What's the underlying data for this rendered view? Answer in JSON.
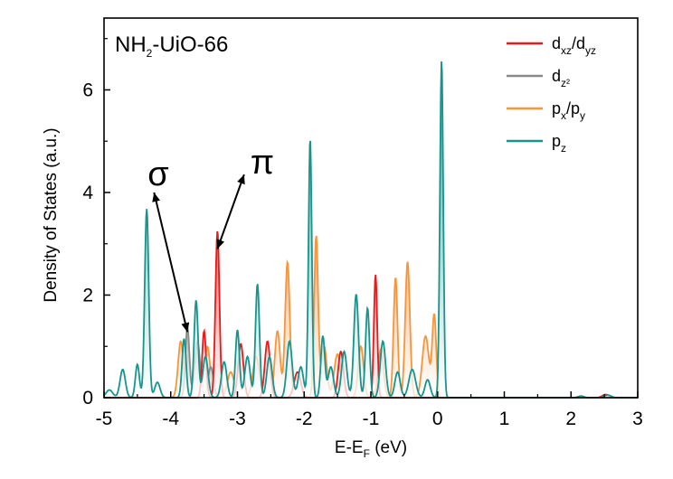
{
  "chart_data": {
    "type": "area",
    "xlabel_main": "E-E",
    "xlabel_sub": "F",
    "xlabel_unit": " (eV)",
    "ylabel": "Density of States (a.u.)",
    "xlim": [
      -5,
      3
    ],
    "ylim": [
      0,
      7.4
    ],
    "x_ticks": [
      -5,
      -4,
      -3,
      -2,
      -1,
      0,
      1,
      2,
      3
    ],
    "x_tick_labels": [
      "-5",
      "-4",
      "-3",
      "-2",
      "-1",
      "0",
      "1",
      "2",
      "3"
    ],
    "y_ticks": [
      0,
      2,
      4,
      6
    ],
    "y_tick_labels": [
      "0",
      "2",
      "4",
      "6"
    ],
    "annotation_label_main": "NH",
    "annotation_label_sub": "2",
    "annotation_label_rest": "-UiO-66",
    "sigma_label": "σ",
    "pi_label": "π",
    "sigma_points": [
      [
        -3.75,
        1.28
      ],
      [
        -4.25,
        4.0
      ]
    ],
    "pi_points": [
      [
        -3.3,
        2.9
      ],
      [
        -2.9,
        4.35
      ]
    ],
    "sigma_arrow_origin": [
      -4.1,
      3.75
    ],
    "pi_arrow_origin": [
      -3.05,
      4.25
    ],
    "legend": [
      {
        "key": "dxz",
        "parts": [
          [
            "d",
            ""
          ],
          [
            "xz",
            "sub"
          ],
          [
            "/d",
            ""
          ],
          [
            "yz",
            "sub"
          ]
        ],
        "color": "#e8191c"
      },
      {
        "key": "dz2",
        "parts": [
          [
            "d",
            ""
          ],
          [
            "z²",
            "sub"
          ]
        ],
        "color": "#8a8a8a"
      },
      {
        "key": "pxpy",
        "parts": [
          [
            "p",
            ""
          ],
          [
            "x",
            "sub"
          ],
          [
            "/p",
            ""
          ],
          [
            "y",
            "sub"
          ]
        ],
        "color": "#f7953c"
      },
      {
        "key": "pz",
        "parts": [
          [
            "p",
            ""
          ],
          [
            "z",
            "sub"
          ]
        ],
        "color": "#18948c"
      }
    ],
    "series": [
      {
        "name": "px/py",
        "color": "#f7953c",
        "fill_top": "#f4a86a",
        "peaks": [
          [
            -3.85,
            1.1,
            0.04
          ],
          [
            -3.45,
            1.0,
            0.04
          ],
          [
            -2.25,
            2.65,
            0.035
          ],
          [
            -1.82,
            3.15,
            0.03
          ],
          [
            -1.15,
            1.0,
            0.04
          ],
          [
            -0.85,
            0.95,
            0.04
          ],
          [
            -0.63,
            2.35,
            0.03
          ],
          [
            -0.45,
            2.65,
            0.035
          ],
          [
            -0.18,
            1.2,
            0.05
          ],
          [
            -0.05,
            1.6,
            0.03
          ],
          [
            -2.72,
            0.8,
            0.05
          ],
          [
            -1.5,
            0.85,
            0.05
          ],
          [
            -3.1,
            0.5,
            0.05
          ],
          [
            -2.4,
            1.3,
            0.04
          ],
          [
            -1.7,
            1.0,
            0.04
          ]
        ]
      },
      {
        "name": "dz2",
        "color": "#8a8a8a",
        "fill_top": "#aaaaaa",
        "peaks": [
          [
            -3.75,
            1.38,
            0.03
          ],
          [
            -3.6,
            1.1,
            0.04
          ],
          [
            -3.4,
            0.6,
            0.04
          ]
        ]
      },
      {
        "name": "dxz/dyz",
        "color": "#e8191c",
        "fill_top": "#ef5a4d",
        "peaks": [
          [
            -3.3,
            3.25,
            0.03
          ],
          [
            -3.5,
            1.3,
            0.03
          ],
          [
            -2.95,
            1.05,
            0.04
          ],
          [
            -2.55,
            1.1,
            0.04
          ],
          [
            -0.93,
            2.4,
            0.025
          ],
          [
            -1.45,
            0.9,
            0.04
          ],
          [
            -2.1,
            0.5,
            0.05
          ],
          [
            2.52,
            0.06,
            0.05
          ],
          [
            2.15,
            0.03,
            0.04
          ]
        ]
      },
      {
        "name": "pz",
        "color": "#18948c",
        "fill_top": "#2aa39a",
        "peaks": [
          [
            -4.92,
            0.15,
            0.05
          ],
          [
            -4.72,
            0.55,
            0.04
          ],
          [
            -4.5,
            0.65,
            0.03
          ],
          [
            -4.36,
            3.68,
            0.03
          ],
          [
            -4.2,
            0.3,
            0.04
          ],
          [
            -3.8,
            1.15,
            0.03
          ],
          [
            -3.62,
            1.9,
            0.03
          ],
          [
            -3.48,
            0.8,
            0.04
          ],
          [
            -3.2,
            0.7,
            0.04
          ],
          [
            -3.0,
            1.32,
            0.03
          ],
          [
            -2.85,
            0.8,
            0.04
          ],
          [
            -2.7,
            2.22,
            0.03
          ],
          [
            -2.52,
            0.8,
            0.04
          ],
          [
            -2.22,
            1.1,
            0.04
          ],
          [
            -2.05,
            0.6,
            0.04
          ],
          [
            -1.91,
            5.05,
            0.025
          ],
          [
            -1.72,
            1.2,
            0.03
          ],
          [
            -1.6,
            0.6,
            0.04
          ],
          [
            -1.4,
            0.9,
            0.04
          ],
          [
            -1.22,
            2.02,
            0.035
          ],
          [
            -1.05,
            1.75,
            0.03
          ],
          [
            -0.82,
            1.1,
            0.04
          ],
          [
            -0.6,
            0.5,
            0.04
          ],
          [
            -0.38,
            0.55,
            0.05
          ],
          [
            0.06,
            6.58,
            0.025
          ],
          [
            -0.15,
            0.35,
            0.04
          ],
          [
            2.15,
            0.03,
            0.04
          ],
          [
            2.55,
            0.05,
            0.05
          ]
        ]
      }
    ]
  }
}
